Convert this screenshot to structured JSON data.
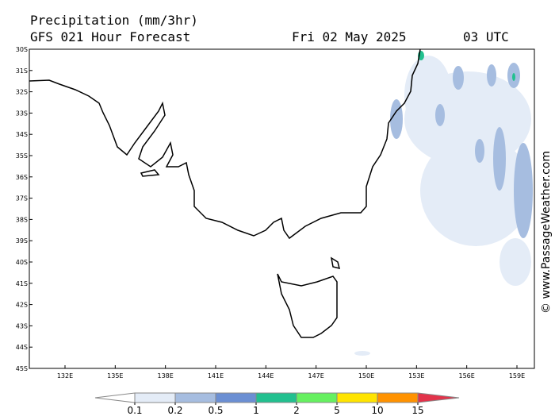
{
  "header": {
    "title": "Precipitation (mm/3hr)",
    "subtitle": "GFS 021 Hour Forecast",
    "date": "Fri 02 May 2025",
    "time": "03 UTC"
  },
  "map": {
    "lat_labels": [
      "30S",
      "31S",
      "32S",
      "33S",
      "34S",
      "35S",
      "36S",
      "37S",
      "38S",
      "39S",
      "40S",
      "41S",
      "42S",
      "43S",
      "44S",
      "45S"
    ],
    "lon_labels": [
      "132E",
      "135E",
      "138E",
      "141E",
      "144E",
      "147E",
      "150E",
      "153E",
      "156E",
      "159E"
    ]
  },
  "legend": {
    "levels": [
      0.1,
      0.2,
      0.5,
      1,
      2,
      5,
      10,
      15
    ],
    "colors": [
      "#ffffff",
      "#e4ecf7",
      "#a6bde0",
      "#6b8fd3",
      "#22c08f",
      "#66f060",
      "#ffe400",
      "#ff9200",
      "#e2334a"
    ]
  },
  "watermark": "© www.PassageWeather.com"
}
